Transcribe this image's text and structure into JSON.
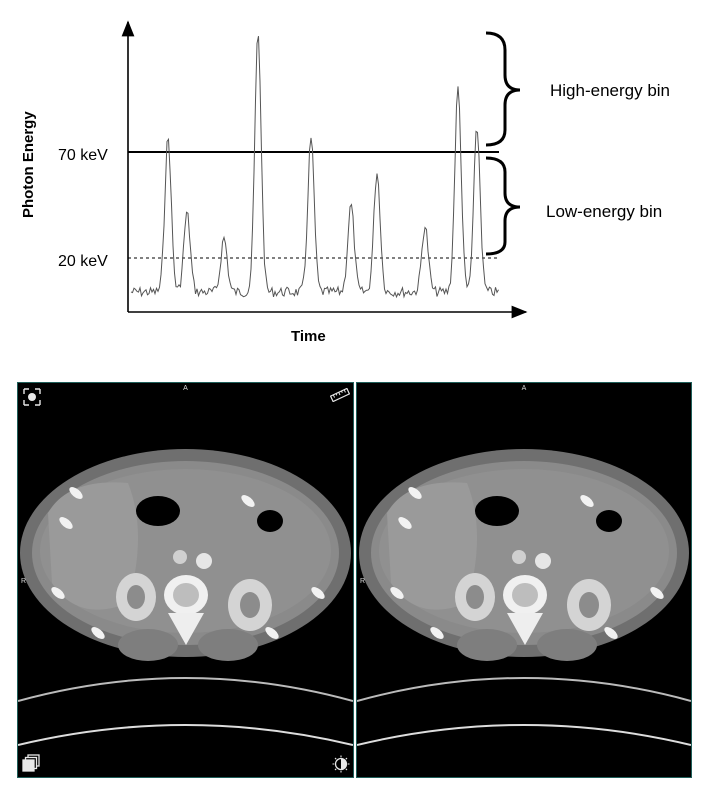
{
  "diagram": {
    "ylabel": "Photon Energy",
    "xlabel": "Time",
    "threshold_high_label": "70 keV",
    "threshold_low_label": "20 keV",
    "bin_high_label": "High-energy bin",
    "bin_low_label": "Low-energy bin"
  },
  "viewers": [
    {
      "orientation_top": "A",
      "orientation_left": "R",
      "tools": [
        "expand-icon",
        "ruler-icon",
        "stack-icon",
        "contrast-icon"
      ]
    },
    {
      "orientation_top": "A",
      "orientation_left": "R",
      "tools": []
    }
  ],
  "colors": {
    "viewer_background": "#000000",
    "viewer_border": "#1f5f5a",
    "signal": "#555555"
  }
}
